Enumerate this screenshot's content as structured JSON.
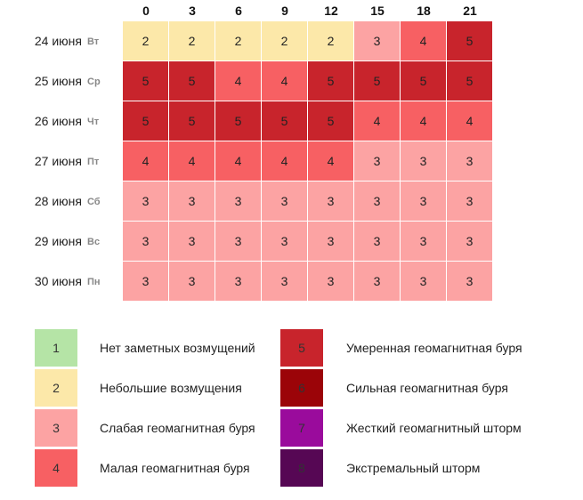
{
  "chart_data": {
    "type": "heatmap",
    "hours": [
      "0",
      "3",
      "6",
      "9",
      "12",
      "15",
      "18",
      "21"
    ],
    "days": [
      {
        "date": "24 июня",
        "dow": "Вт"
      },
      {
        "date": "25 июня",
        "dow": "Ср"
      },
      {
        "date": "26 июня",
        "dow": "Чт"
      },
      {
        "date": "27 июня",
        "dow": "Пт"
      },
      {
        "date": "28 июня",
        "dow": "Сб"
      },
      {
        "date": "29 июня",
        "dow": "Вс"
      },
      {
        "date": "30 июня",
        "dow": "Пн"
      }
    ],
    "values": [
      [
        2,
        2,
        2,
        2,
        2,
        3,
        4,
        5
      ],
      [
        5,
        5,
        4,
        4,
        5,
        5,
        5,
        5
      ],
      [
        5,
        5,
        5,
        5,
        5,
        4,
        4,
        4
      ],
      [
        4,
        4,
        4,
        4,
        4,
        3,
        3,
        3
      ],
      [
        3,
        3,
        3,
        3,
        3,
        3,
        3,
        3
      ],
      [
        3,
        3,
        3,
        3,
        3,
        3,
        3,
        3
      ],
      [
        3,
        3,
        3,
        3,
        3,
        3,
        3,
        3
      ]
    ],
    "legend": [
      {
        "level": "1",
        "label": "Нет заметных возмущений",
        "color": "#b5e4a6"
      },
      {
        "level": "2",
        "label": "Небольшие возмущения",
        "color": "#fce8a9"
      },
      {
        "level": "3",
        "label": "Слабая геомагнитная буря",
        "color": "#fca3a3"
      },
      {
        "level": "4",
        "label": "Малая геомагнитная буря",
        "color": "#f76063"
      },
      {
        "level": "5",
        "label": "Умеренная геомагнитная буря",
        "color": "#c8242c"
      },
      {
        "level": "6",
        "label": "Сильная геомагнитная буря",
        "color": "#9b0408"
      },
      {
        "level": "7",
        "label": "Жесткий геомагнитный шторм",
        "color": "#9a0b9c"
      },
      {
        "level": "8",
        "label": "Экстремальный шторм",
        "color": "#560754"
      }
    ]
  }
}
